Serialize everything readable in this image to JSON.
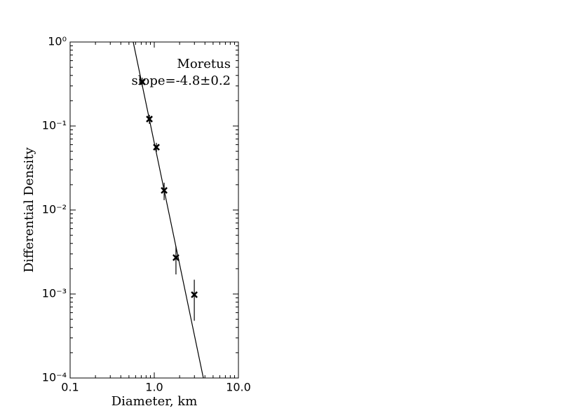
{
  "chart_data": {
    "type": "scatter",
    "log_x": true,
    "log_y": true,
    "annotations": [
      "Moretus",
      "slope=-4.8±0.2"
    ],
    "xlabel": "Diameter, km",
    "ylabel": "Differential Density",
    "x": [
      0.72,
      0.875,
      1.06,
      1.31,
      1.81,
      2.99
    ],
    "values": [
      0.335,
      0.121,
      0.056,
      0.0171,
      0.00271,
      0.00098
    ],
    "errors": [
      0.04,
      0.015,
      0.007,
      0.004,
      0.001,
      0.0005
    ],
    "color": "#000000",
    "fit": {
      "x": [
        0.562,
        3.83
      ],
      "y": [
        1,
        0.0001
      ]
    },
    "xlim": [
      0.1,
      10
    ],
    "ylim": [
      0.0001,
      1
    ],
    "xticks": [
      {
        "value": 0.1,
        "label": "0.1"
      },
      {
        "value": 1,
        "label": "1.0"
      },
      {
        "value": 10,
        "label": "10.0"
      }
    ],
    "yticks": [
      {
        "value": 0.0001,
        "label": "10⁻⁴"
      },
      {
        "value": 0.001,
        "label": "10⁻³"
      },
      {
        "value": 0.01,
        "label": "10⁻²"
      },
      {
        "value": 0.1,
        "label": "10⁻¹"
      },
      {
        "value": 1,
        "label": "10⁰"
      }
    ]
  }
}
